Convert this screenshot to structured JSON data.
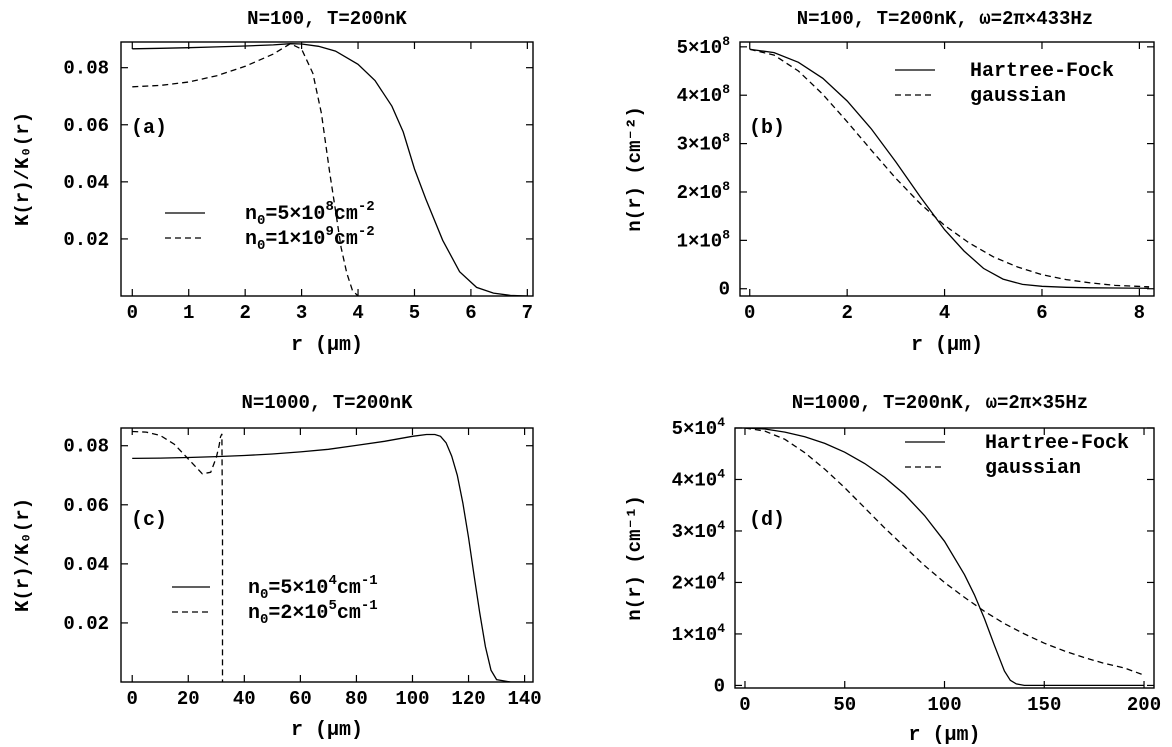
{
  "chart_data": [
    {
      "type": "line",
      "panel_label": "(a)",
      "title": "N=100, T=200nK",
      "xlabel": "r  (μm)",
      "ylabel": "K(r)/K₀(r)",
      "xlim": [
        -0.2,
        7.1
      ],
      "ylim": [
        0.0,
        0.089
      ],
      "xticks": [
        0,
        1,
        2,
        3,
        4,
        5,
        6,
        7
      ],
      "xtick_labels": [
        "0",
        "1",
        "2",
        "3",
        "4",
        "5",
        "6",
        "7"
      ],
      "yticks": [
        0.02,
        0.04,
        0.06,
        0.08
      ],
      "ytick_labels": [
        "0.02",
        "0.04",
        "0.06",
        "0.08"
      ],
      "legend_position": "center-left",
      "series": [
        {
          "name": "n₀=5×10⁸cm⁻²",
          "legend_main": "n",
          "legend_sub": "0",
          "legend_rest": "=5×10",
          "legend_exp1": "8",
          "legend_unit": "cm",
          "legend_exp2": "-2",
          "style": "solid",
          "x": [
            0,
            0.5,
            1,
            1.5,
            2,
            2.5,
            2.8,
            3,
            3.3,
            3.6,
            4,
            4.3,
            4.6,
            4.8,
            5,
            5.2,
            5.5,
            5.8,
            6.1,
            6.4,
            6.7,
            7
          ],
          "y": [
            0.0866,
            0.0868,
            0.087,
            0.0873,
            0.0876,
            0.088,
            0.0884,
            0.0883,
            0.0875,
            0.0858,
            0.0812,
            0.0755,
            0.0665,
            0.0575,
            0.0445,
            0.034,
            0.0195,
            0.0085,
            0.003,
            0.001,
            0.0002,
            0.0
          ]
        },
        {
          "name": "n₀=1×10⁹cm⁻²",
          "legend_main": "n",
          "legend_sub": "0",
          "legend_rest": "=1×10",
          "legend_exp1": "9",
          "legend_unit": "cm",
          "legend_exp2": "-2",
          "style": "dashed",
          "x": [
            0,
            0.5,
            1,
            1.5,
            2,
            2.5,
            2.8,
            3,
            3.2,
            3.35,
            3.5,
            3.6,
            3.7,
            3.8,
            3.9,
            4
          ],
          "y": [
            0.0733,
            0.0738,
            0.075,
            0.0772,
            0.0805,
            0.0848,
            0.0884,
            0.0865,
            0.078,
            0.064,
            0.043,
            0.03,
            0.017,
            0.008,
            0.002,
            0.0
          ]
        }
      ]
    },
    {
      "type": "line",
      "panel_label": "(b)",
      "title": "N=100, T=200nK, ω=2π×433Hz",
      "xlabel": "r  (μm)",
      "ylabel": "n(r)  (cm⁻²)",
      "xlim": [
        -0.2,
        8.3
      ],
      "ylim": [
        -0.15,
        5.1
      ],
      "y_scale_label": "×10⁸",
      "xticks": [
        0,
        2,
        4,
        6,
        8
      ],
      "xtick_labels": [
        "0",
        "2",
        "4",
        "6",
        "8"
      ],
      "yticks": [
        0,
        1,
        2,
        3,
        4,
        5
      ],
      "ytick_labels": [
        {
          "mantissa": "0",
          "exp": ""
        },
        {
          "mantissa": "1×10",
          "exp": "8"
        },
        {
          "mantissa": "2×10",
          "exp": "8"
        },
        {
          "mantissa": "3×10",
          "exp": "8"
        },
        {
          "mantissa": "4×10",
          "exp": "8"
        },
        {
          "mantissa": "5×10",
          "exp": "8"
        }
      ],
      "legend_position": "top-right",
      "series": [
        {
          "name": "Hartree-Fock",
          "style": "solid",
          "x": [
            0,
            0.5,
            1,
            1.5,
            2,
            2.5,
            3,
            3.5,
            4,
            4.4,
            4.8,
            5.2,
            5.6,
            6,
            6.5,
            7,
            7.5,
            8.2
          ],
          "y": [
            4.95,
            4.88,
            4.68,
            4.35,
            3.88,
            3.3,
            2.62,
            1.9,
            1.22,
            0.78,
            0.42,
            0.2,
            0.09,
            0.05,
            0.03,
            0.02,
            0.015,
            0.01
          ]
        },
        {
          "name": "gaussian",
          "style": "dashed",
          "x": [
            0,
            0.5,
            1,
            1.5,
            2,
            2.5,
            3,
            3.5,
            4,
            4.5,
            5,
            5.5,
            6,
            6.5,
            7,
            7.5,
            8.2
          ],
          "y": [
            4.95,
            4.83,
            4.5,
            4.02,
            3.45,
            2.86,
            2.28,
            1.76,
            1.31,
            0.95,
            0.66,
            0.45,
            0.29,
            0.19,
            0.12,
            0.07,
            0.04
          ]
        }
      ]
    },
    {
      "type": "line",
      "panel_label": "(c)",
      "title": "N=1000, T=200nK",
      "xlabel": "r  (μm)",
      "ylabel": "K(r)/K₀(r)",
      "xlim": [
        -4,
        143
      ],
      "ylim": [
        0.0,
        0.086
      ],
      "xticks": [
        0,
        20,
        40,
        60,
        80,
        100,
        120,
        140
      ],
      "xtick_labels": [
        "0",
        "20",
        "40",
        "60",
        "80",
        "100",
        "120",
        "140"
      ],
      "yticks": [
        0.02,
        0.04,
        0.06,
        0.08
      ],
      "ytick_labels": [
        "0.02",
        "0.04",
        "0.06",
        "0.08"
      ],
      "legend_position": "center-left",
      "series": [
        {
          "name": "n₀=5×10⁴cm⁻¹",
          "legend_main": "n",
          "legend_sub": "0",
          "legend_rest": "=5×10",
          "legend_exp1": "4",
          "legend_unit": "cm",
          "legend_exp2": "-1",
          "style": "solid",
          "x": [
            0,
            10,
            20,
            30,
            40,
            50,
            60,
            70,
            80,
            90,
            100,
            105,
            108,
            110,
            112,
            114,
            116,
            118,
            120,
            122,
            124,
            126,
            128,
            130,
            135,
            140
          ],
          "y": [
            0.0757,
            0.0758,
            0.076,
            0.0763,
            0.0767,
            0.0772,
            0.0779,
            0.0788,
            0.0801,
            0.0815,
            0.0832,
            0.0838,
            0.0838,
            0.0832,
            0.081,
            0.0765,
            0.07,
            0.0605,
            0.049,
            0.036,
            0.0235,
            0.012,
            0.004,
            0.0008,
            0.0,
            0.0
          ]
        },
        {
          "name": "n₀=2×10⁵cm⁻¹",
          "legend_main": "n",
          "legend_sub": "0",
          "legend_rest": "=2×10",
          "legend_exp1": "5",
          "legend_unit": "cm",
          "legend_exp2": "-1",
          "style": "dashed",
          "x": [
            0,
            5,
            10,
            15,
            20,
            25,
            28,
            30,
            31,
            31.5,
            32,
            32.2,
            32.2
          ],
          "y": [
            0.0848,
            0.0846,
            0.0835,
            0.0805,
            0.0755,
            0.0705,
            0.071,
            0.076,
            0.08,
            0.083,
            0.084,
            0.05,
            0.0
          ]
        }
      ]
    },
    {
      "type": "line",
      "panel_label": "(d)",
      "title": "N=1000, T=200nK, ω=2π×35Hz",
      "xlabel": "r  (μm)",
      "ylabel": "n(r)  (cm⁻¹)",
      "xlim": [
        -5,
        205
      ],
      "ylim": [
        -0.05,
        5.0
      ],
      "y_scale_label": "×10⁴",
      "xticks": [
        0,
        50,
        100,
        150,
        200
      ],
      "xtick_labels": [
        "0",
        "50",
        "100",
        "150",
        "200"
      ],
      "yticks": [
        0,
        1,
        2,
        3,
        4,
        5
      ],
      "ytick_labels": [
        {
          "mantissa": "0",
          "exp": ""
        },
        {
          "mantissa": "1×10",
          "exp": "4"
        },
        {
          "mantissa": "2×10",
          "exp": "4"
        },
        {
          "mantissa": "3×10",
          "exp": "4"
        },
        {
          "mantissa": "4×10",
          "exp": "4"
        },
        {
          "mantissa": "5×10",
          "exp": "4"
        }
      ],
      "legend_position": "top-right",
      "series": [
        {
          "name": "Hartree-Fock",
          "style": "solid",
          "x": [
            0,
            10,
            20,
            30,
            40,
            50,
            60,
            70,
            80,
            90,
            100,
            110,
            115,
            120,
            125,
            130,
            133,
            136,
            140,
            150,
            200
          ],
          "y": [
            5.0,
            4.98,
            4.92,
            4.83,
            4.7,
            4.53,
            4.31,
            4.04,
            3.71,
            3.3,
            2.8,
            2.15,
            1.76,
            1.3,
            0.78,
            0.28,
            0.1,
            0.03,
            0.0,
            0.0,
            0.0
          ]
        },
        {
          "name": "gaussian",
          "style": "dashed",
          "x": [
            0,
            10,
            20,
            30,
            40,
            50,
            60,
            70,
            80,
            90,
            100,
            110,
            120,
            130,
            140,
            150,
            160,
            170,
            180,
            190,
            200
          ],
          "y": [
            5.0,
            4.94,
            4.78,
            4.52,
            4.2,
            3.84,
            3.45,
            3.06,
            2.69,
            2.33,
            2.0,
            1.71,
            1.44,
            1.2,
            1.0,
            0.82,
            0.67,
            0.54,
            0.43,
            0.34,
            0.2
          ]
        }
      ]
    }
  ]
}
